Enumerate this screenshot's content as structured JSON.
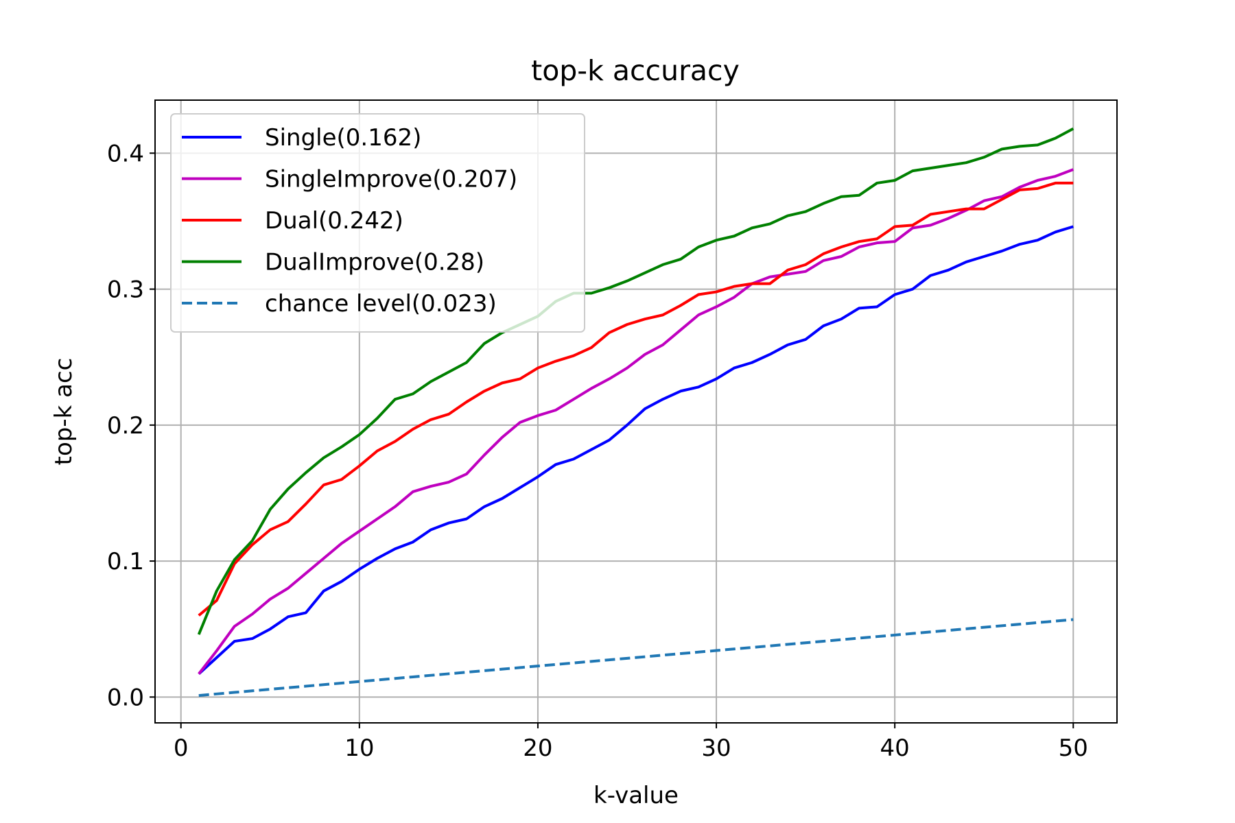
{
  "chart_data": {
    "type": "line",
    "title": "top-k accuracy",
    "xlabel": "k-value",
    "ylabel": "top-k acc",
    "xlim": [
      -1.45,
      52.45
    ],
    "ylim": [
      -0.019,
      0.439
    ],
    "xticks": [
      0,
      10,
      20,
      30,
      40,
      50
    ],
    "yticks": [
      0.0,
      0.1,
      0.2,
      0.3,
      0.4
    ],
    "xtick_labels": [
      "0",
      "10",
      "20",
      "30",
      "40",
      "50"
    ],
    "ytick_labels": [
      "0.0",
      "0.1",
      "0.2",
      "0.3",
      "0.4"
    ],
    "grid": true,
    "legend_position": "top-left",
    "x": [
      1,
      2,
      3,
      4,
      5,
      6,
      7,
      8,
      9,
      10,
      11,
      12,
      13,
      14,
      15,
      16,
      17,
      18,
      19,
      20,
      21,
      22,
      23,
      24,
      25,
      26,
      27,
      28,
      29,
      30,
      31,
      32,
      33,
      34,
      35,
      36,
      37,
      38,
      39,
      40,
      41,
      42,
      43,
      44,
      45,
      46,
      47,
      48,
      49,
      50
    ],
    "series": [
      {
        "name": "Single(0.162)",
        "color": "#0000ff",
        "dashed": false,
        "values": [
          0.017,
          0.029,
          0.041,
          0.043,
          0.05,
          0.059,
          0.062,
          0.078,
          0.085,
          0.094,
          0.102,
          0.109,
          0.114,
          0.123,
          0.128,
          0.131,
          0.14,
          0.146,
          0.154,
          0.162,
          0.171,
          0.175,
          0.182,
          0.189,
          0.2,
          0.212,
          0.219,
          0.225,
          0.228,
          0.234,
          0.242,
          0.246,
          0.252,
          0.259,
          0.263,
          0.273,
          0.278,
          0.286,
          0.287,
          0.296,
          0.3,
          0.31,
          0.314,
          0.32,
          0.324,
          0.328,
          0.333,
          0.336,
          0.342,
          0.346
        ]
      },
      {
        "name": "SingleImprove(0.207)",
        "color": "#bf00bf",
        "dashed": false,
        "values": [
          0.017,
          0.034,
          0.052,
          0.061,
          0.072,
          0.08,
          0.091,
          0.102,
          0.113,
          0.122,
          0.131,
          0.14,
          0.151,
          0.155,
          0.158,
          0.164,
          0.178,
          0.191,
          0.202,
          0.207,
          0.211,
          0.219,
          0.227,
          0.234,
          0.242,
          0.252,
          0.259,
          0.27,
          0.281,
          0.287,
          0.294,
          0.304,
          0.309,
          0.311,
          0.313,
          0.321,
          0.324,
          0.331,
          0.334,
          0.335,
          0.345,
          0.347,
          0.352,
          0.358,
          0.365,
          0.368,
          0.375,
          0.38,
          0.383,
          0.388
        ]
      },
      {
        "name": "Dual(0.242)",
        "color": "#ff0000",
        "dashed": false,
        "values": [
          0.06,
          0.071,
          0.098,
          0.112,
          0.123,
          0.129,
          0.142,
          0.156,
          0.16,
          0.17,
          0.181,
          0.188,
          0.197,
          0.204,
          0.208,
          0.217,
          0.225,
          0.231,
          0.234,
          0.242,
          0.247,
          0.251,
          0.257,
          0.268,
          0.274,
          0.278,
          0.281,
          0.288,
          0.296,
          0.298,
          0.302,
          0.304,
          0.304,
          0.314,
          0.318,
          0.326,
          0.331,
          0.335,
          0.337,
          0.346,
          0.347,
          0.355,
          0.357,
          0.359,
          0.359,
          0.366,
          0.373,
          0.374,
          0.378,
          0.378
        ]
      },
      {
        "name": "DualImprove(0.28)",
        "color": "#008000",
        "dashed": false,
        "values": [
          0.046,
          0.078,
          0.101,
          0.115,
          0.138,
          0.153,
          0.165,
          0.176,
          0.184,
          0.193,
          0.205,
          0.219,
          0.223,
          0.232,
          0.239,
          0.246,
          0.26,
          0.268,
          0.274,
          0.28,
          0.291,
          0.297,
          0.297,
          0.301,
          0.306,
          0.312,
          0.318,
          0.322,
          0.331,
          0.336,
          0.339,
          0.345,
          0.348,
          0.354,
          0.357,
          0.363,
          0.368,
          0.369,
          0.378,
          0.38,
          0.387,
          0.389,
          0.391,
          0.393,
          0.397,
          0.403,
          0.405,
          0.406,
          0.411,
          0.418
        ]
      },
      {
        "name": "chance level(0.023)",
        "color": "#1f77b4",
        "dashed": true,
        "values": [
          0.00114,
          0.00228,
          0.00342,
          0.00456,
          0.0057,
          0.00684,
          0.00798,
          0.00912,
          0.01026,
          0.0114,
          0.01254,
          0.01368,
          0.01482,
          0.01596,
          0.0171,
          0.01824,
          0.01938,
          0.02052,
          0.02166,
          0.0228,
          0.02394,
          0.02508,
          0.02622,
          0.02736,
          0.0285,
          0.02964,
          0.03078,
          0.03192,
          0.03306,
          0.0342,
          0.03534,
          0.03648,
          0.03762,
          0.03876,
          0.0399,
          0.04104,
          0.04218,
          0.04332,
          0.04446,
          0.0456,
          0.04674,
          0.04788,
          0.04902,
          0.05016,
          0.0513,
          0.05244,
          0.05358,
          0.05472,
          0.05586,
          0.057
        ]
      }
    ]
  }
}
